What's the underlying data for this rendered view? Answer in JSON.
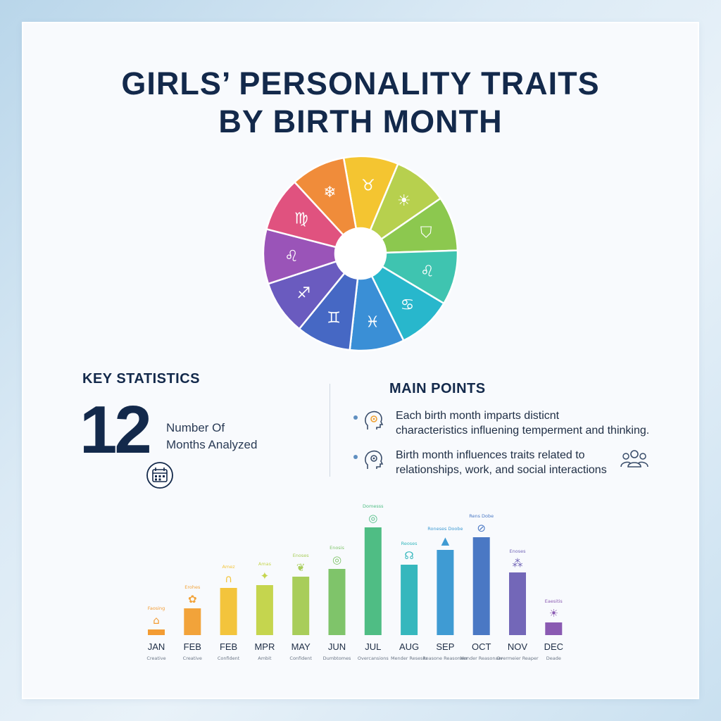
{
  "title": {
    "line1": "GIRLS’ PERSONALITY TRAITS",
    "line2": "BY BIRTH MONTH"
  },
  "wheel": {
    "segments": [
      {
        "color": "#f4c531",
        "icon": "taurus-icon",
        "glyph": "♉"
      },
      {
        "color": "#b7d04e",
        "icon": "sun-icon",
        "glyph": "☀"
      },
      {
        "color": "#8cc84f",
        "icon": "shield-icon",
        "glyph": "⛉"
      },
      {
        "color": "#3fc4b0",
        "icon": "lightbulb-icon",
        "glyph": "♌"
      },
      {
        "color": "#28b7cc",
        "icon": "cancer-icon",
        "glyph": "♋"
      },
      {
        "color": "#3a8fd6",
        "icon": "pisces-icon",
        "glyph": "♓"
      },
      {
        "color": "#4668c4",
        "icon": "gemini-icon",
        "glyph": "♊"
      },
      {
        "color": "#6a5bbf",
        "icon": "sagittarius-icon",
        "glyph": "♐"
      },
      {
        "color": "#9a54b8",
        "icon": "leo-icon",
        "glyph": "♌"
      },
      {
        "color": "#e0527f",
        "icon": "virgo-icon",
        "glyph": "♍"
      },
      {
        "color": "#f08c3a",
        "icon": "snowflake-icon",
        "glyph": "❄"
      }
    ]
  },
  "key_statistics": {
    "heading": "KEY STATISTICS",
    "number": "12",
    "label_line1": "Number Of",
    "label_line2": "Months Analyzed",
    "icon": "calendar-icon"
  },
  "main_points": {
    "heading": "MAIN POINTS",
    "items": [
      {
        "line1": "Each birth month imparts disticnt",
        "line2": "characteristics influening temperment and thinking.",
        "icon": "head-gear-icon"
      },
      {
        "line1": "Birth month influences traits related to",
        "line2": "relationships, work, and social interactions",
        "icon": "head-gear-icon"
      }
    ],
    "people_icon": "people-icon"
  },
  "chart_data": {
    "type": "bar",
    "categories": [
      "JAN",
      "FEB",
      "FEB",
      "MPR",
      "MAY",
      "JUN",
      "JUL",
      "AUG",
      "SEP",
      "OCT",
      "NOV",
      "DEC"
    ],
    "values": [
      8,
      38,
      67,
      71,
      83,
      94,
      153,
      100,
      121,
      139,
      89,
      18
    ],
    "ylim": [
      0,
      160
    ],
    "colors": [
      "#f39c33",
      "#f2a33a",
      "#f3c43c",
      "#c5d54e",
      "#a8cd5a",
      "#7fc46a",
      "#4fbd84",
      "#36b7bd",
      "#3f9bd3",
      "#4a78c4",
      "#7367b8",
      "#8a5ab2"
    ],
    "sublabels": [
      "Creative",
      "Creative",
      "Confident",
      "Ambit",
      "Confident",
      "Dumbtomes",
      "Overcansions",
      "Mender Reseser",
      "Reasone Reasonaer",
      "Mender Reasonaer",
      "Overmeier Reaper",
      "Deade"
    ],
    "top_labels": [
      "Faosing",
      "Erohes",
      "Amez",
      "Amas",
      "Enoses",
      "Enosis",
      "Domesss",
      "Reoses",
      "Roneses Doobe",
      "Rens Dobe",
      "Enoses",
      "Eaesitis"
    ],
    "top_icons": [
      "house-icon",
      "flower-icon",
      "horseshoe-icon",
      "star-icon",
      "leaf-icon",
      "globe-icon",
      "globe-icon",
      "ribbon-icon",
      "rocket-icon",
      "compass-icon",
      "molecule-icon",
      "bulb-icon"
    ],
    "grid": false,
    "legend": "none"
  }
}
